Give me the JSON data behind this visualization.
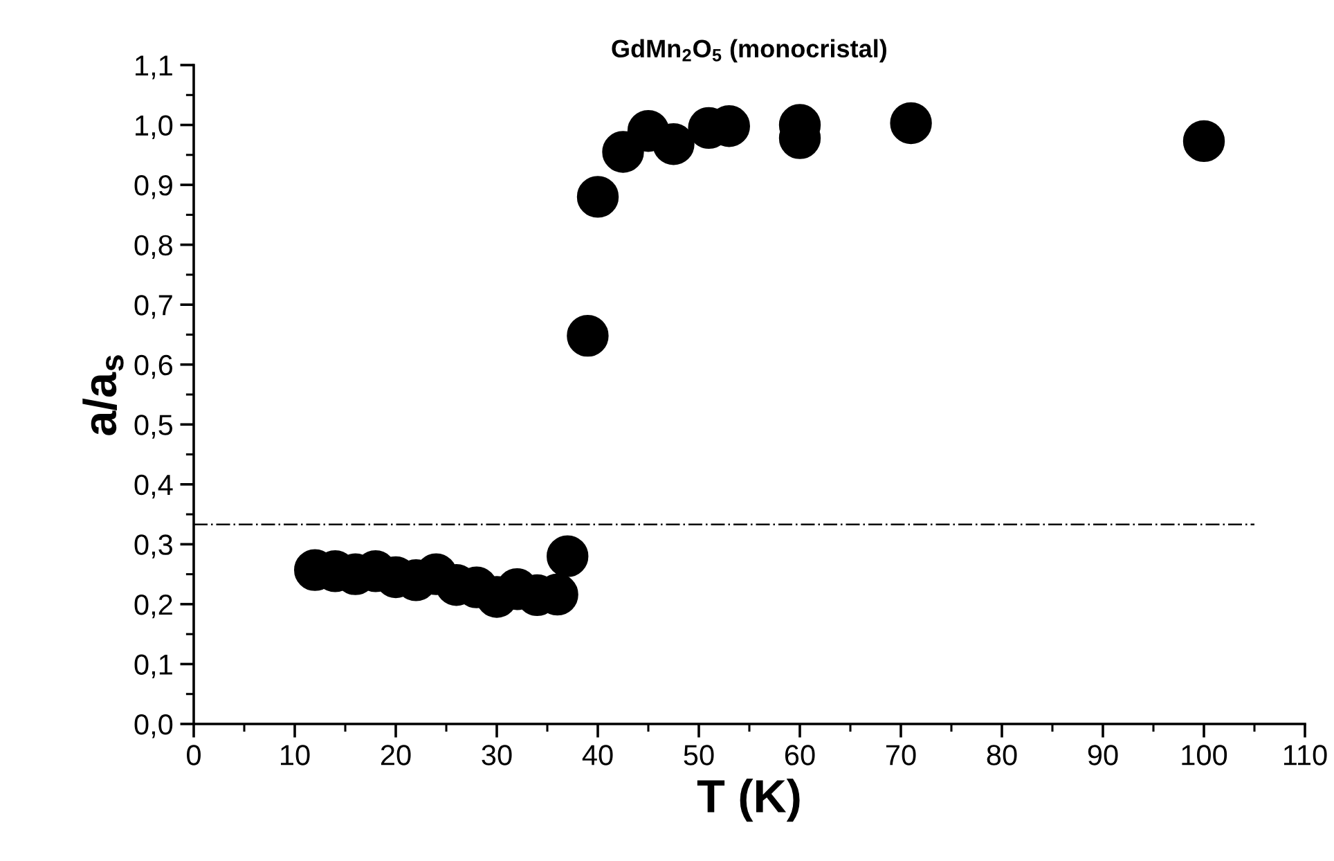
{
  "chart_data": {
    "type": "scatter",
    "title": "GdMn$_{2}$O$_{5}$ (monocristal)",
    "xlabel": "T (K)",
    "ylabel": "a/a$_{s}$",
    "x": [
      12,
      14,
      16,
      18,
      20,
      22,
      24,
      26,
      28,
      30,
      32,
      34,
      36,
      37,
      39,
      40,
      42.5,
      45,
      47.5,
      51,
      53,
      60,
      60,
      71,
      100
    ],
    "series": [
      {
        "color": "#000000",
        "values": [
          0.257,
          0.255,
          0.25,
          0.255,
          0.245,
          0.24,
          0.25,
          0.232,
          0.228,
          0.212,
          0.225,
          0.215,
          0.216,
          0.28,
          0.648,
          0.88,
          0.955,
          0.99,
          0.968,
          0.995,
          0.998,
          1.0,
          0.978,
          1.003,
          0.973
        ]
      }
    ],
    "marker": "circle",
    "grid": false,
    "legend": false,
    "xlim": [
      0,
      110
    ],
    "xticks": [
      0,
      10,
      20,
      30,
      40,
      50,
      60,
      70,
      80,
      90,
      100,
      110
    ],
    "ylim": [
      0,
      1.1
    ],
    "yticks": [
      {
        "value": 0,
        "label": "0,0"
      },
      {
        "value": 0.1,
        "label": "0,1"
      },
      {
        "value": 0.2,
        "label": "0,2"
      },
      {
        "value": 0.3,
        "label": "0,3"
      },
      {
        "value": 0.4,
        "label": "0,4"
      },
      {
        "value": 0.5,
        "label": "0,5"
      },
      {
        "value": 0.6,
        "label": "0,6"
      },
      {
        "value": 0.7,
        "label": "0,7"
      },
      {
        "value": 0.8,
        "label": "0,8"
      },
      {
        "value": 0.9,
        "label": "0,9"
      },
      {
        "value": 1.0,
        "label": "1,0"
      },
      {
        "value": 1.1,
        "label": "1,1"
      }
    ],
    "ref_lines": [
      {
        "axis": "y",
        "value": 0.333,
        "color": "#000000",
        "line_style": "dashdot"
      }
    ]
  }
}
